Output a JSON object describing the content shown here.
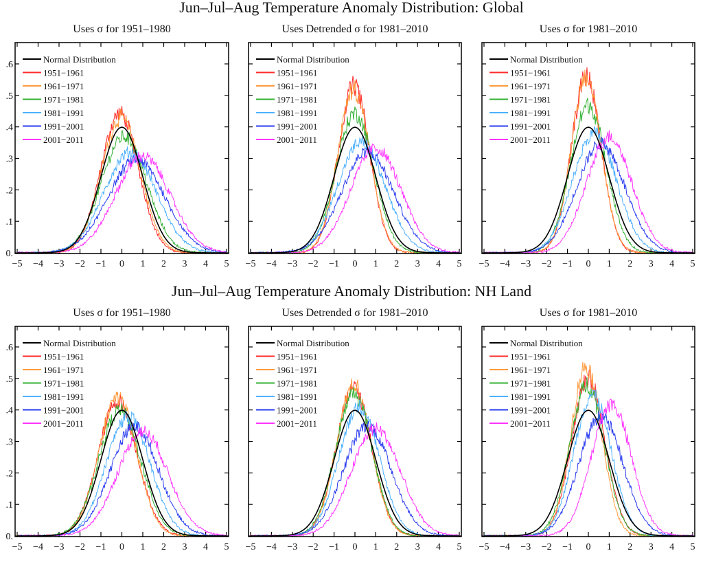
{
  "chart_data": [
    {
      "group_title": "Jun–Jul–Aug Temperature Anomaly Distribution: Global",
      "subtitle": "Uses σ for 1951–1980",
      "type": "line",
      "xlim": [
        -5,
        5
      ],
      "ylim": [
        0,
        0.66
      ],
      "series": [
        {
          "name": "Normal Distribution",
          "mean": 0,
          "sd": 1
        },
        {
          "name": "1951−1961",
          "mean": -0.1,
          "sd": 0.9
        },
        {
          "name": "1961−1971",
          "mean": -0.05,
          "sd": 0.93
        },
        {
          "name": "1971−1981",
          "mean": 0.1,
          "sd": 1.08
        },
        {
          "name": "1981−1991",
          "mean": 0.4,
          "sd": 1.25
        },
        {
          "name": "1991−2001",
          "mean": 0.7,
          "sd": 1.35
        },
        {
          "name": "2001−2011",
          "mean": 1.0,
          "sd": 1.3
        }
      ]
    },
    {
      "group_title": "Jun–Jul–Aug Temperature Anomaly Distribution: Global",
      "subtitle": "Uses Detrended σ for 1981–2010",
      "type": "line",
      "xlim": [
        -5,
        5
      ],
      "ylim": [
        0,
        0.66
      ],
      "series": [
        {
          "name": "Normal Distribution",
          "mean": 0,
          "sd": 1
        },
        {
          "name": "1951−1961",
          "mean": -0.05,
          "sd": 0.75
        },
        {
          "name": "1961−1971",
          "mean": -0.05,
          "sd": 0.77
        },
        {
          "name": "1971−1981",
          "mean": 0,
          "sd": 0.9
        },
        {
          "name": "1981−1991",
          "mean": 0.3,
          "sd": 1.14
        },
        {
          "name": "1991−2001",
          "mean": 0.6,
          "sd": 1.25
        },
        {
          "name": "2001−2011",
          "mean": 1.0,
          "sd": 1.2
        }
      ]
    },
    {
      "group_title": "Jun–Jul–Aug Temperature Anomaly Distribution: Global",
      "subtitle": "Uses σ for 1981–2010",
      "type": "line",
      "xlim": [
        -5,
        5
      ],
      "ylim": [
        0,
        0.66
      ],
      "series": [
        {
          "name": "Normal Distribution",
          "mean": 0,
          "sd": 1
        },
        {
          "name": "1951−1961",
          "mean": -0.1,
          "sd": 0.71
        },
        {
          "name": "1961−1971",
          "mean": -0.1,
          "sd": 0.72
        },
        {
          "name": "1971−1981",
          "mean": 0,
          "sd": 0.85
        },
        {
          "name": "1981−1991",
          "mean": 0.3,
          "sd": 1.05
        },
        {
          "name": "1991−2001",
          "mean": 0.6,
          "sd": 1.15
        },
        {
          "name": "2001−2011",
          "mean": 1.0,
          "sd": 1.08
        }
      ]
    },
    {
      "group_title": "Jun–Jul–Aug Temperature Anomaly Distribution: NH Land",
      "subtitle": "Uses σ for 1951–1980",
      "type": "line",
      "xlim": [
        -5,
        5
      ],
      "ylim": [
        0,
        0.66
      ],
      "series": [
        {
          "name": "Normal Distribution",
          "mean": 0,
          "sd": 1
        },
        {
          "name": "1951−1961",
          "mean": -0.2,
          "sd": 0.93
        },
        {
          "name": "1961−1971",
          "mean": -0.2,
          "sd": 0.9
        },
        {
          "name": "1971−1981",
          "mean": -0.1,
          "sd": 1.0
        },
        {
          "name": "1981−1991",
          "mean": 0.3,
          "sd": 1.05
        },
        {
          "name": "1991−2001",
          "mean": 0.6,
          "sd": 1.15
        },
        {
          "name": "2001−2011",
          "mean": 1.0,
          "sd": 1.2
        }
      ]
    },
    {
      "group_title": "Jun–Jul–Aug Temperature Anomaly Distribution: NH Land",
      "subtitle": "Uses Detrended σ for 1981–2010",
      "type": "line",
      "xlim": [
        -5,
        5
      ],
      "ylim": [
        0,
        0.66
      ],
      "series": [
        {
          "name": "Normal Distribution",
          "mean": 0,
          "sd": 1
        },
        {
          "name": "1951−1961",
          "mean": -0.05,
          "sd": 0.85
        },
        {
          "name": "1961−1971",
          "mean": -0.05,
          "sd": 0.83
        },
        {
          "name": "1971−1981",
          "mean": -0.05,
          "sd": 0.88
        },
        {
          "name": "1981−1991",
          "mean": 0.2,
          "sd": 0.97
        },
        {
          "name": "1991−2001",
          "mean": 0.6,
          "sd": 1.14
        },
        {
          "name": "2001−2011",
          "mean": 1.0,
          "sd": 1.17
        }
      ]
    },
    {
      "group_title": "Jun–Jul–Aug Temperature Anomaly Distribution: NH Land",
      "subtitle": "Uses σ for 1981–2010",
      "type": "line",
      "xlim": [
        -5,
        5
      ],
      "ylim": [
        0,
        0.66
      ],
      "series": [
        {
          "name": "Normal Distribution",
          "mean": 0,
          "sd": 1
        },
        {
          "name": "1951−1961",
          "mean": 0,
          "sd": 0.8
        },
        {
          "name": "1961−1971",
          "mean": -0.1,
          "sd": 0.74
        },
        {
          "name": "1971−1981",
          "mean": -0.05,
          "sd": 0.83
        },
        {
          "name": "1981−1991",
          "mean": 0.2,
          "sd": 0.89
        },
        {
          "name": "1991−2001",
          "mean": 0.6,
          "sd": 1.05
        },
        {
          "name": "2001−2011",
          "mean": 1.1,
          "sd": 0.95
        }
      ]
    }
  ],
  "titles": [
    "Jun–Jul–Aug Temperature Anomaly Distribution: Global",
    "Jun–Jul–Aug Temperature Anomaly Distribution: NH Land"
  ],
  "x_ticks": [
    "−5",
    "−4",
    "−3",
    "−2",
    "−1",
    "0",
    "1",
    "2",
    "3",
    "4",
    "5"
  ],
  "y_ticks": [
    "0.",
    ".1",
    ".2",
    ".3",
    ".4",
    ".5",
    ".6"
  ],
  "series_colors": [
    "#000000",
    "#ff2a2a",
    "#ff9a3c",
    "#33b033",
    "#4cb0ff",
    "#2a3cf0",
    "#ff33ff"
  ]
}
